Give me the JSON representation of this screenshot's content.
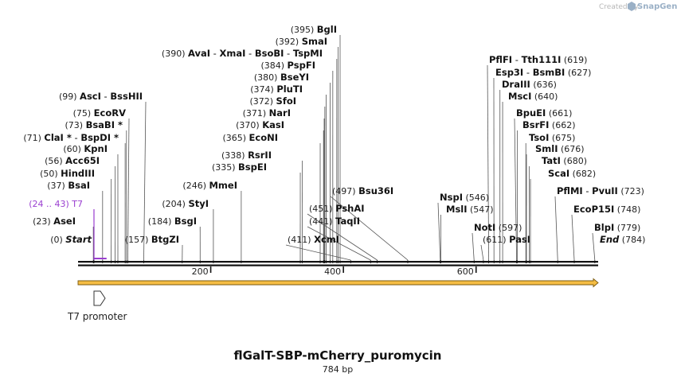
{
  "credit": {
    "text": "Created by",
    "brand": "SnapGene"
  },
  "plasmid": {
    "name": "flGalT-SBP-mCherry_puromycin",
    "length_label": "784 bp",
    "length": 784
  },
  "axis": {
    "ticks": [
      200,
      400,
      600
    ]
  },
  "features": {
    "t7_promoter": {
      "label": "T7 promoter",
      "start": 24,
      "end": 43
    },
    "orf": {
      "start": 1,
      "end": 784,
      "color": "#f5bd43"
    }
  },
  "sites": [
    {
      "pos": "(0)",
      "name": "Start",
      "site": 0,
      "italic": true
    },
    {
      "pos": "(23)",
      "name": "AseI",
      "site": 23
    },
    {
      "pos": "(24 .. 43)",
      "name": "T7",
      "site": 24,
      "primer": true
    },
    {
      "pos": "(37)",
      "name": "BsaI",
      "site": 37
    },
    {
      "pos": "(50)",
      "name": "HindIII",
      "site": 50
    },
    {
      "pos": "(56)",
      "name": "Acc65I",
      "site": 56
    },
    {
      "pos": "(60)",
      "name": "KpnI",
      "site": 60
    },
    {
      "pos": "(71)",
      "name": "ClaI *",
      "alt": "BspDI *",
      "site": 71
    },
    {
      "pos": "(73)",
      "name": "BsaBI *",
      "site": 73
    },
    {
      "pos": "(75)",
      "name": "EcoRV",
      "site": 75
    },
    {
      "pos": "(99)",
      "name": "AscI",
      "alt": "BssHII",
      "site": 99
    },
    {
      "pos": "(157)",
      "name": "BtgZI",
      "site": 157
    },
    {
      "pos": "(184)",
      "name": "BsgI",
      "site": 184
    },
    {
      "pos": "(204)",
      "name": "StyI",
      "site": 204
    },
    {
      "pos": "(246)",
      "name": "MmeI",
      "site": 246
    },
    {
      "pos": "(335)",
      "name": "BspEI",
      "site": 335
    },
    {
      "pos": "(338)",
      "name": "RsrII",
      "site": 338
    },
    {
      "pos": "(365)",
      "name": "EcoNI",
      "site": 365
    },
    {
      "pos": "(370)",
      "name": "KasI",
      "site": 370
    },
    {
      "pos": "(371)",
      "name": "NarI",
      "site": 371
    },
    {
      "pos": "(372)",
      "name": "SfoI",
      "site": 372
    },
    {
      "pos": "(374)",
      "name": "PluTI",
      "site": 374
    },
    {
      "pos": "(380)",
      "name": "BseYI",
      "site": 380
    },
    {
      "pos": "(384)",
      "name": "PspFI",
      "site": 384
    },
    {
      "pos": "(390)",
      "name": "AvaI",
      "alt": "XmaI",
      "alt2": "BsoBI",
      "alt3": "TspMI",
      "site": 390
    },
    {
      "pos": "(392)",
      "name": "SmaI",
      "site": 392
    },
    {
      "pos": "(395)",
      "name": "BglI",
      "site": 395
    },
    {
      "pos": "(411)",
      "name": "XcmI",
      "site": 411
    },
    {
      "pos": "(441)",
      "name": "TaqII",
      "site": 441
    },
    {
      "pos": "(451)",
      "name": "PshAI",
      "site": 451
    },
    {
      "pos": "(497)",
      "name": "Bsu36I",
      "site": 497
    },
    {
      "pos": "(546)",
      "name": "NspI",
      "site": 546
    },
    {
      "pos": "(547)",
      "name": "MslI",
      "site": 547
    },
    {
      "pos": "(597)",
      "name": "NotI",
      "site": 597
    },
    {
      "pos": "(611)",
      "name": "PasI",
      "site": 611
    },
    {
      "pos": "(619)",
      "name": "PflFI",
      "alt": "Tth111I",
      "site": 619
    },
    {
      "pos": "(627)",
      "name": "Esp3I",
      "alt": "BsmBI",
      "site": 627
    },
    {
      "pos": "(636)",
      "name": "DraIII",
      "site": 636
    },
    {
      "pos": "(640)",
      "name": "MscI",
      "site": 640
    },
    {
      "pos": "(661)",
      "name": "BpuEI",
      "site": 661
    },
    {
      "pos": "(662)",
      "name": "BsrFI",
      "site": 662
    },
    {
      "pos": "(675)",
      "name": "TsoI",
      "site": 675
    },
    {
      "pos": "(676)",
      "name": "SmlI",
      "site": 676
    },
    {
      "pos": "(680)",
      "name": "TatI",
      "site": 680
    },
    {
      "pos": "(682)",
      "name": "ScaI",
      "site": 682
    },
    {
      "pos": "(723)",
      "name": "PflMI",
      "alt": "PvuII",
      "site": 723
    },
    {
      "pos": "(748)",
      "name": "EcoP15I",
      "site": 748
    },
    {
      "pos": "(779)",
      "name": "BlpI",
      "site": 779
    },
    {
      "pos": "(784)",
      "name": "End",
      "site": 784,
      "italic": true
    }
  ]
}
